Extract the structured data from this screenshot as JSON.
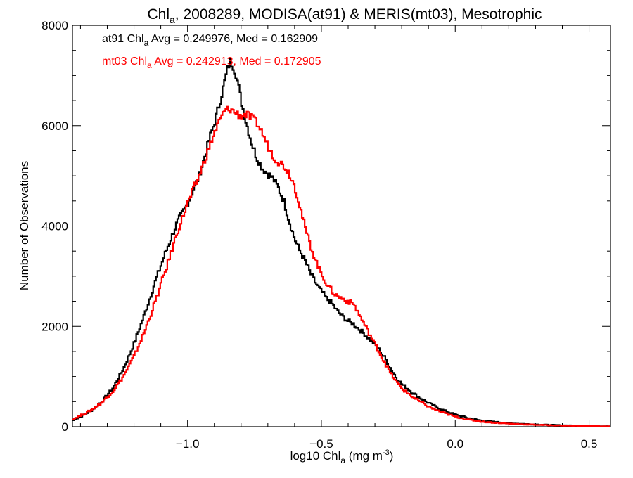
{
  "chart_data": {
    "type": "line",
    "title_prefix": "Chl",
    "title_sub": "a",
    "title_suffix": ", 2008289, MODISA(at91) & MERIS(mt03), Mesotrophic",
    "xlabel_prefix": "log10 Chl",
    "xlabel_sub": "a",
    "xlabel_suffix": " (mg m",
    "xlabel_sup": "-3",
    "xlabel_close": ")",
    "ylabel": "Number of Observations",
    "xlim": [
      -1.43,
      0.58
    ],
    "ylim": [
      0,
      8000
    ],
    "x_ticks": [
      -1.0,
      -0.5,
      0.0,
      0.5
    ],
    "x_tick_labels": [
      "−1.0",
      "−0.5",
      "0.0",
      "0.5"
    ],
    "y_ticks": [
      0,
      2000,
      4000,
      6000,
      8000
    ],
    "y_tick_labels": [
      "0",
      "2000",
      "4000",
      "6000",
      "8000"
    ],
    "grid": false,
    "legend": [
      {
        "prefix": "at91 Chl",
        "sub": "a",
        "text": " Avg = 0.249976, Med = 0.162909",
        "color": "#000000"
      },
      {
        "prefix": "mt03 Chl",
        "sub": "a",
        "text": " Avg = 0.242913, Med = 0.172905",
        "color": "#ff0000"
      }
    ],
    "series": [
      {
        "color": "#000000",
        "points": [
          [
            -1.43,
            120
          ],
          [
            -1.4,
            200
          ],
          [
            -1.36,
            320
          ],
          [
            -1.32,
            500
          ],
          [
            -1.28,
            760
          ],
          [
            -1.24,
            1150
          ],
          [
            -1.2,
            1650
          ],
          [
            -1.16,
            2250
          ],
          [
            -1.12,
            2900
          ],
          [
            -1.08,
            3500
          ],
          [
            -1.04,
            4050
          ],
          [
            -1.0,
            4450
          ],
          [
            -0.96,
            4950
          ],
          [
            -0.94,
            5300
          ],
          [
            -0.92,
            5700
          ],
          [
            -0.9,
            6050
          ],
          [
            -0.88,
            6450
          ],
          [
            -0.86,
            6900
          ],
          [
            -0.85,
            7150
          ],
          [
            -0.84,
            7280
          ],
          [
            -0.83,
            7200
          ],
          [
            -0.82,
            7050
          ],
          [
            -0.81,
            6800
          ],
          [
            -0.8,
            6500
          ],
          [
            -0.78,
            6050
          ],
          [
            -0.76,
            5650
          ],
          [
            -0.74,
            5350
          ],
          [
            -0.72,
            5150
          ],
          [
            -0.7,
            5050
          ],
          [
            -0.68,
            4950
          ],
          [
            -0.66,
            4750
          ],
          [
            -0.64,
            4500
          ],
          [
            -0.62,
            4100
          ],
          [
            -0.6,
            3750
          ],
          [
            -0.58,
            3500
          ],
          [
            -0.56,
            3300
          ],
          [
            -0.54,
            3050
          ],
          [
            -0.52,
            2850
          ],
          [
            -0.5,
            2700
          ],
          [
            -0.48,
            2550
          ],
          [
            -0.46,
            2450
          ],
          [
            -0.44,
            2300
          ],
          [
            -0.42,
            2200
          ],
          [
            -0.4,
            2100
          ],
          [
            -0.38,
            2050
          ],
          [
            -0.36,
            1950
          ],
          [
            -0.34,
            1850
          ],
          [
            -0.32,
            1750
          ],
          [
            -0.3,
            1650
          ],
          [
            -0.28,
            1500
          ],
          [
            -0.26,
            1350
          ],
          [
            -0.24,
            1150
          ],
          [
            -0.22,
            980
          ],
          [
            -0.2,
            850
          ],
          [
            -0.15,
            640
          ],
          [
            -0.1,
            470
          ],
          [
            -0.05,
            340
          ],
          [
            0.0,
            240
          ],
          [
            0.05,
            170
          ],
          [
            0.1,
            120
          ],
          [
            0.2,
            70
          ],
          [
            0.3,
            45
          ],
          [
            0.4,
            28
          ],
          [
            0.5,
            15
          ],
          [
            0.58,
            8
          ]
        ]
      },
      {
        "color": "#ff0000",
        "points": [
          [
            -1.43,
            150
          ],
          [
            -1.4,
            220
          ],
          [
            -1.36,
            330
          ],
          [
            -1.32,
            480
          ],
          [
            -1.28,
            700
          ],
          [
            -1.24,
            1000
          ],
          [
            -1.2,
            1400
          ],
          [
            -1.16,
            1900
          ],
          [
            -1.12,
            2500
          ],
          [
            -1.08,
            3150
          ],
          [
            -1.04,
            3850
          ],
          [
            -1.0,
            4450
          ],
          [
            -0.96,
            4950
          ],
          [
            -0.94,
            5250
          ],
          [
            -0.92,
            5550
          ],
          [
            -0.9,
            5850
          ],
          [
            -0.88,
            6100
          ],
          [
            -0.86,
            6300
          ],
          [
            -0.84,
            6330
          ],
          [
            -0.82,
            6250
          ],
          [
            -0.8,
            6200
          ],
          [
            -0.78,
            6220
          ],
          [
            -0.76,
            6150
          ],
          [
            -0.74,
            6050
          ],
          [
            -0.72,
            5850
          ],
          [
            -0.7,
            5600
          ],
          [
            -0.68,
            5400
          ],
          [
            -0.66,
            5280
          ],
          [
            -0.64,
            5200
          ],
          [
            -0.62,
            5050
          ],
          [
            -0.6,
            4800
          ],
          [
            -0.58,
            4400
          ],
          [
            -0.56,
            3950
          ],
          [
            -0.54,
            3600
          ],
          [
            -0.52,
            3300
          ],
          [
            -0.5,
            3050
          ],
          [
            -0.48,
            2850
          ],
          [
            -0.46,
            2700
          ],
          [
            -0.44,
            2600
          ],
          [
            -0.42,
            2550
          ],
          [
            -0.4,
            2500
          ],
          [
            -0.38,
            2450
          ],
          [
            -0.36,
            2250
          ],
          [
            -0.34,
            2050
          ],
          [
            -0.32,
            1850
          ],
          [
            -0.3,
            1650
          ],
          [
            -0.28,
            1450
          ],
          [
            -0.26,
            1250
          ],
          [
            -0.24,
            1050
          ],
          [
            -0.22,
            900
          ],
          [
            -0.2,
            760
          ],
          [
            -0.15,
            560
          ],
          [
            -0.1,
            400
          ],
          [
            -0.05,
            290
          ],
          [
            0.0,
            200
          ],
          [
            0.05,
            140
          ],
          [
            0.1,
            100
          ],
          [
            0.2,
            60
          ],
          [
            0.3,
            38
          ],
          [
            0.4,
            22
          ],
          [
            0.5,
            12
          ],
          [
            0.58,
            6
          ]
        ]
      }
    ]
  }
}
